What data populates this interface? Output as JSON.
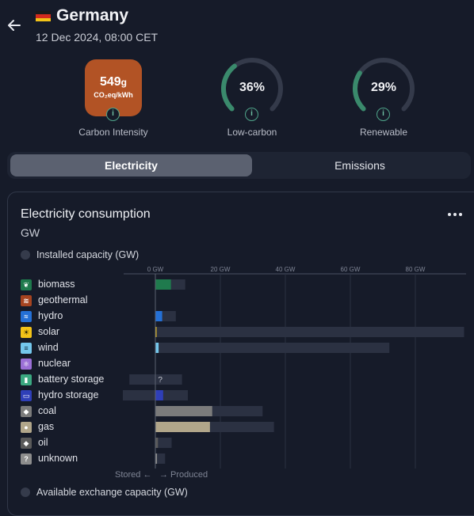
{
  "header": {
    "country": "Germany",
    "datetime": "12 Dec 2024, 08:00 CET"
  },
  "metrics": {
    "carbon_intensity": {
      "value": "549",
      "unit_suffix": "g",
      "unit_line": "CO₂eq/kWh",
      "label": "Carbon Intensity",
      "color": "#b25325"
    },
    "low_carbon": {
      "value": "36%",
      "fraction": 0.36,
      "label": "Low-carbon"
    },
    "renewable": {
      "value": "29%",
      "fraction": 0.29,
      "label": "Renewable"
    }
  },
  "tabs": [
    {
      "label": "Electricity",
      "active": true
    },
    {
      "label": "Emissions",
      "active": false
    }
  ],
  "panel": {
    "title": "Electricity consumption",
    "unit": "GW",
    "installed_toggle": "Installed capacity (GW)",
    "exchange_toggle": "Available exchange capacity (GW)",
    "stored_label": "Stored ←",
    "produced_label": "→ Produced"
  },
  "chart_data": {
    "type": "bar",
    "x_ticks": [
      "0 GW",
      "20 GW",
      "40 GW",
      "60 GW",
      "80 GW"
    ],
    "x_tick_values": [
      0,
      20,
      40,
      60,
      80
    ],
    "xlim": [
      -10,
      95
    ],
    "categories": [
      "biomass",
      "geothermal",
      "hydro",
      "solar",
      "wind",
      "nuclear",
      "battery storage",
      "hydro storage",
      "coal",
      "gas",
      "oil",
      "unknown"
    ],
    "series": [
      {
        "name": "production",
        "values": [
          4.8,
          0.0,
          2.1,
          0.3,
          1.0,
          0.0,
          0.0,
          2.4,
          17.5,
          16.8,
          0.8,
          0.5
        ]
      },
      {
        "name": "installed capacity",
        "min": [
          0,
          0,
          0,
          0,
          0,
          0,
          -8,
          -10,
          0,
          0,
          0,
          0
        ],
        "max": [
          9.2,
          0.0,
          6.3,
          95.0,
          72.0,
          0.0,
          8.2,
          10.0,
          33.0,
          36.5,
          5.0,
          3.0
        ]
      }
    ],
    "colors": {
      "biomass": "#1f7a4d",
      "geothermal": "#a64420",
      "hydro": "#2470d6",
      "solar": "#f2c318",
      "wind": "#74c7ec",
      "nuclear": "#9b6fd6",
      "battery storage": "#3ba880",
      "hydro storage": "#2f3fb8",
      "coal": "#7b7b7b",
      "gas": "#b1a68a",
      "oil": "#5a5a5a",
      "unknown": "#8d8d8d"
    },
    "icons": {
      "biomass": "leaf-icon",
      "geothermal": "heat-waves-icon",
      "hydro": "water-waves-icon",
      "solar": "sun-icon",
      "wind": "wind-icon",
      "nuclear": "atom-icon",
      "battery storage": "battery-icon",
      "hydro storage": "storage-icon",
      "coal": "flame-icon",
      "gas": "gas-icon",
      "oil": "drop-icon",
      "unknown": "question-icon"
    },
    "unknown_marker": "?"
  }
}
